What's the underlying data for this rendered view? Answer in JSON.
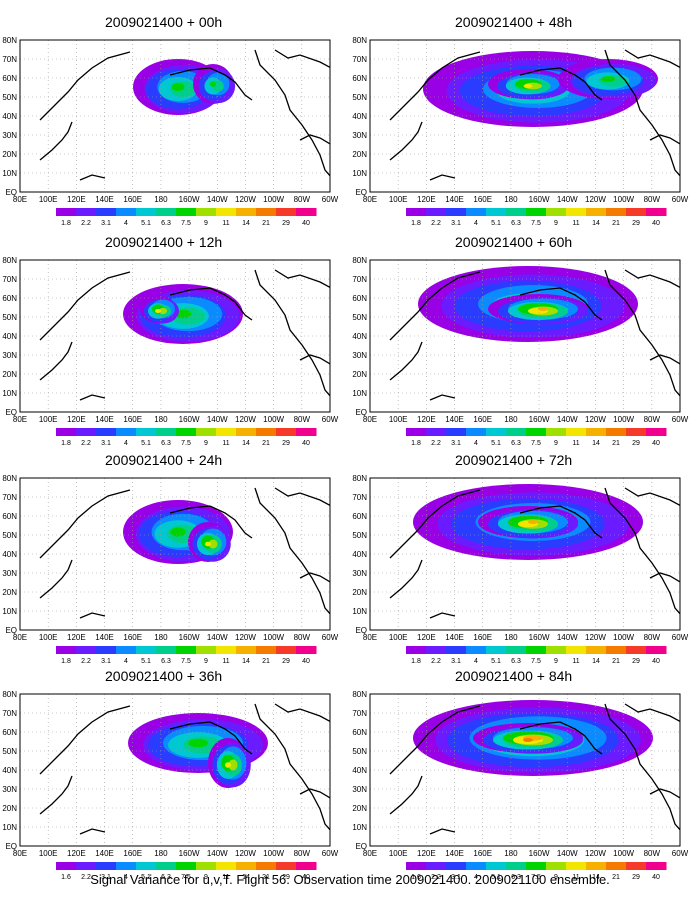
{
  "panels": [
    {
      "title": "2009021400 + 00h",
      "blobs": [
        {
          "cx": 160,
          "cy": 48,
          "rx": 45,
          "ry": 28,
          "level": 7
        },
        {
          "cx": 195,
          "cy": 45,
          "rx": 20,
          "ry": 20,
          "level": 7
        }
      ]
    },
    {
      "title": "2009021400 + 48h",
      "blobs": [
        {
          "cx": 165,
          "cy": 50,
          "rx": 110,
          "ry": 38,
          "level": 6
        },
        {
          "cx": 160,
          "cy": 45,
          "rx": 40,
          "ry": 15,
          "level": 9
        },
        {
          "cx": 240,
          "cy": 40,
          "rx": 50,
          "ry": 20,
          "level": 7
        }
      ]
    },
    {
      "title": "2009021400 + 12h",
      "blobs": [
        {
          "cx": 165,
          "cy": 55,
          "rx": 60,
          "ry": 30,
          "level": 7
        },
        {
          "cx": 140,
          "cy": 50,
          "rx": 18,
          "ry": 14,
          "level": 9
        }
      ]
    },
    {
      "title": "2009021400 + 60h",
      "blobs": [
        {
          "cx": 160,
          "cy": 45,
          "rx": 110,
          "ry": 38,
          "level": 6
        },
        {
          "cx": 170,
          "cy": 50,
          "rx": 50,
          "ry": 15,
          "level": 10
        }
      ]
    },
    {
      "title": "2009021400 + 24h",
      "blobs": [
        {
          "cx": 160,
          "cy": 55,
          "rx": 55,
          "ry": 32,
          "level": 7
        },
        {
          "cx": 190,
          "cy": 65,
          "rx": 20,
          "ry": 20,
          "level": 9
        }
      ]
    },
    {
      "title": "2009021400 + 72h",
      "blobs": [
        {
          "cx": 160,
          "cy": 45,
          "rx": 115,
          "ry": 38,
          "level": 6
        },
        {
          "cx": 160,
          "cy": 45,
          "rx": 50,
          "ry": 16,
          "level": 10
        }
      ]
    },
    {
      "title": "2009021400 + 36h",
      "blobs": [
        {
          "cx": 180,
          "cy": 50,
          "rx": 70,
          "ry": 30,
          "level": 7
        },
        {
          "cx": 210,
          "cy": 70,
          "rx": 20,
          "ry": 25,
          "level": 9
        }
      ]
    },
    {
      "title": "2009021400 + 84h",
      "blobs": [
        {
          "cx": 165,
          "cy": 45,
          "rx": 120,
          "ry": 38,
          "level": 7
        },
        {
          "cx": 160,
          "cy": 45,
          "rx": 55,
          "ry": 15,
          "level": 11
        }
      ]
    }
  ],
  "map": {
    "lat_labels": [
      "80N",
      "70N",
      "60N",
      "50N",
      "40N",
      "30N",
      "20N",
      "10N",
      "EQ"
    ],
    "lon_labels": [
      "80E",
      "100E",
      "120E",
      "140E",
      "160E",
      "180",
      "160W",
      "140W",
      "120W",
      "100W",
      "80W",
      "60W"
    ]
  },
  "colorbar": {
    "labels": [
      "1.8",
      "2.2",
      "3.1",
      "4",
      "5.1",
      "6.3",
      "7.5",
      "9",
      "11",
      "14",
      "21",
      "29",
      "40"
    ],
    "labels_last_row": [
      "1.6",
      "2.2",
      "3.1",
      "4",
      "5.1",
      "6.3",
      "7.5",
      "9",
      "11",
      "14",
      "21",
      "29",
      "40"
    ],
    "colors": [
      "#9a00e6",
      "#6a1bff",
      "#2a3cff",
      "#0a8bff",
      "#00c8d2",
      "#00cf8c",
      "#00d400",
      "#a0e000",
      "#f2e600",
      "#f5b000",
      "#f57a00",
      "#f53a2a",
      "#f0008c"
    ]
  },
  "caption": "Signal Variance for u,v,T. Flight 56. Observation time 2009021400. 2009021100 ensemble."
}
